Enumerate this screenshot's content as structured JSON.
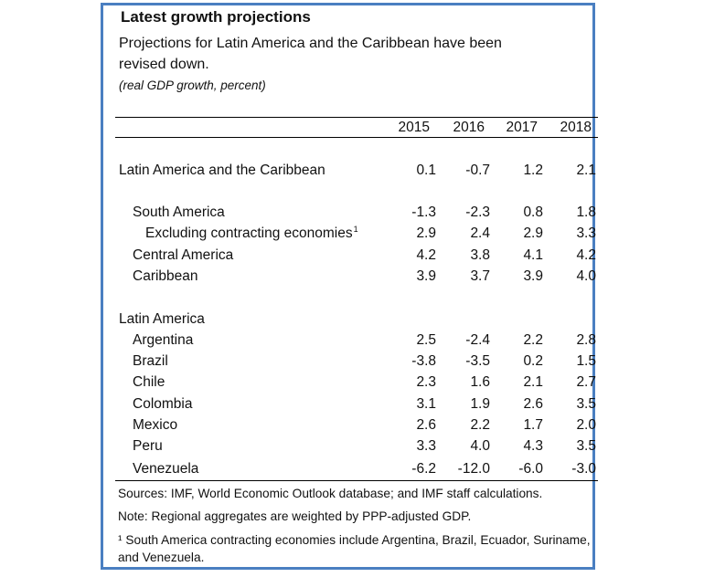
{
  "title": "Latest growth projections",
  "subtitle": "Projections for Latin America and the Caribbean have been revised down.",
  "units": "(real GDP growth, percent)",
  "years": [
    "2015",
    "2016",
    "2017",
    "2018"
  ],
  "rows": [
    {
      "label": "Latin America and the Caribbean",
      "values": [
        "0.1",
        "-0.7",
        "1.2",
        "2.1"
      ]
    },
    {
      "label": "South America",
      "values": [
        "-1.3",
        "-2.3",
        "0.8",
        "1.8"
      ]
    },
    {
      "label": "Excluding contracting economies",
      "sup": "1",
      "values": [
        "2.9",
        "2.4",
        "2.9",
        "3.3"
      ]
    },
    {
      "label": "Central America",
      "values": [
        "4.2",
        "3.8",
        "4.1",
        "4.2"
      ]
    },
    {
      "label": "Caribbean",
      "values": [
        "3.9",
        "3.7",
        "3.9",
        "4.0"
      ]
    },
    {
      "label": "Argentina",
      "values": [
        "2.5",
        "-2.4",
        "2.2",
        "2.8"
      ]
    },
    {
      "label": "Brazil",
      "values": [
        "-3.8",
        "-3.5",
        "0.2",
        "1.5"
      ]
    },
    {
      "label": "Chile",
      "values": [
        "2.3",
        "1.6",
        "2.1",
        "2.7"
      ]
    },
    {
      "label": "Colombia",
      "values": [
        "3.1",
        "1.9",
        "2.6",
        "3.5"
      ]
    },
    {
      "label": "Mexico",
      "values": [
        "2.6",
        "2.2",
        "1.7",
        "2.0"
      ]
    },
    {
      "label": "Peru",
      "values": [
        "3.3",
        "4.0",
        "4.3",
        "3.5"
      ]
    },
    {
      "label": "Venezuela",
      "values": [
        "-6.2",
        "-12.0",
        "-6.0",
        "-3.0"
      ]
    }
  ],
  "section_label": "Latin America",
  "notes": {
    "sources": "Sources: IMF, World Economic Outlook database; and IMF staff calculations.",
    "note": "Note: Regional aggregates are weighted by PPP-adjusted GDP.",
    "footnote": "¹ South America contracting economies include Argentina, Brazil, Ecuador, Suriname, and Venezuela."
  },
  "chart_data": {
    "type": "table",
    "title": "Latest growth projections",
    "subtitle": "Projections for Latin America and the Caribbean have been revised down.",
    "units": "(real GDP growth, percent)",
    "columns": [
      "2015",
      "2016",
      "2017",
      "2018"
    ],
    "groups": [
      {
        "name": "",
        "rows": [
          {
            "label": "Latin America and the Caribbean",
            "values": [
              0.1,
              -0.7,
              1.2,
              2.1
            ]
          }
        ]
      },
      {
        "name": "",
        "rows": [
          {
            "label": "South America",
            "values": [
              -1.3,
              -2.3,
              0.8,
              1.8
            ]
          },
          {
            "label": "Excluding contracting economies",
            "values": [
              2.9,
              2.4,
              2.9,
              3.3
            ]
          },
          {
            "label": "Central America",
            "values": [
              4.2,
              3.8,
              4.1,
              4.2
            ]
          },
          {
            "label": "Caribbean",
            "values": [
              3.9,
              3.7,
              3.9,
              4.0
            ]
          }
        ]
      },
      {
        "name": "Latin America",
        "rows": [
          {
            "label": "Argentina",
            "values": [
              2.5,
              -2.4,
              2.2,
              2.8
            ]
          },
          {
            "label": "Brazil",
            "values": [
              -3.8,
              -3.5,
              0.2,
              1.5
            ]
          },
          {
            "label": "Chile",
            "values": [
              2.3,
              1.6,
              2.1,
              2.7
            ]
          },
          {
            "label": "Colombia",
            "values": [
              3.1,
              1.9,
              2.6,
              3.5
            ]
          },
          {
            "label": "Mexico",
            "values": [
              2.6,
              2.2,
              1.7,
              2.0
            ]
          },
          {
            "label": "Peru",
            "values": [
              3.3,
              4.0,
              4.3,
              3.5
            ]
          },
          {
            "label": "Venezuela",
            "values": [
              -6.2,
              -12.0,
              -6.0,
              -3.0
            ]
          }
        ]
      }
    ]
  }
}
